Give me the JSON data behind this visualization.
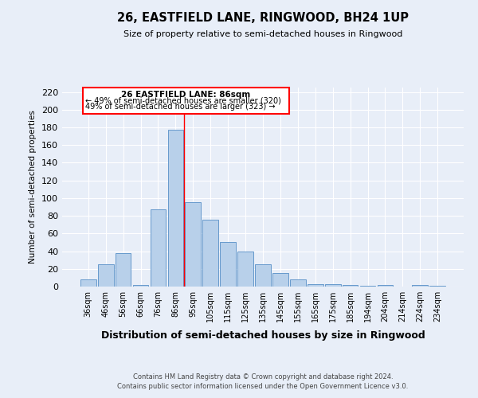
{
  "title": "26, EASTFIELD LANE, RINGWOOD, BH24 1UP",
  "subtitle": "Size of property relative to semi-detached houses in Ringwood",
  "xlabel": "Distribution of semi-detached houses by size in Ringwood",
  "ylabel": "Number of semi-detached properties",
  "categories": [
    "36sqm",
    "46sqm",
    "56sqm",
    "66sqm",
    "76sqm",
    "86sqm",
    "95sqm",
    "105sqm",
    "115sqm",
    "125sqm",
    "135sqm",
    "145sqm",
    "155sqm",
    "165sqm",
    "175sqm",
    "185sqm",
    "194sqm",
    "204sqm",
    "214sqm",
    "224sqm",
    "234sqm"
  ],
  "values": [
    8,
    25,
    38,
    2,
    87,
    177,
    95,
    76,
    50,
    40,
    25,
    15,
    8,
    3,
    3,
    2,
    1,
    2,
    0,
    2,
    1
  ],
  "bar_color": "#b8d0ea",
  "bar_edge_color": "#6699cc",
  "vline_x_index": 5,
  "annotation_title": "26 EASTFIELD LANE: 86sqm",
  "annotation_line1": "← 49% of semi-detached houses are smaller (320)",
  "annotation_line2": "49% of semi-detached houses are larger (323) →",
  "ylim": [
    0,
    225
  ],
  "yticks": [
    0,
    20,
    40,
    60,
    80,
    100,
    120,
    140,
    160,
    180,
    200,
    220
  ],
  "footer_line1": "Contains HM Land Registry data © Crown copyright and database right 2024.",
  "footer_line2": "Contains public sector information licensed under the Open Government Licence v3.0.",
  "bg_color": "#e8eef8",
  "plot_bg_color": "#e8eef8"
}
